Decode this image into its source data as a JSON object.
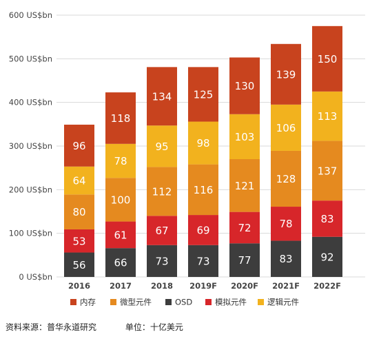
{
  "chart_data": {
    "type": "bar",
    "stacked": true,
    "categories": [
      "2016",
      "2017",
      "2018",
      "2019F",
      "2020F",
      "2021F",
      "2022F"
    ],
    "ylim": [
      0,
      600
    ],
    "yticks": [
      0,
      100,
      200,
      300,
      400,
      500,
      600
    ],
    "ytick_labels": [
      "0 US$bn",
      "100 US$bn",
      "200 US$bn",
      "300 US$bn",
      "400 US$bn",
      "500 US$bn",
      "600 US$bn"
    ],
    "grid": true,
    "legend_position": "bottom",
    "series": [
      {
        "name": "OSD",
        "values": [
          56,
          66,
          73,
          73,
          77,
          83,
          92
        ],
        "color": "#3d3d3d"
      },
      {
        "name": "模拟元件",
        "values": [
          53,
          61,
          67,
          69,
          72,
          78,
          83
        ],
        "color": "#d7262a"
      },
      {
        "name": "微型元件",
        "values": [
          80,
          100,
          112,
          116,
          121,
          128,
          137
        ],
        "color": "#e58a1f"
      },
      {
        "name": "逻辑元件",
        "values": [
          64,
          78,
          95,
          98,
          103,
          106,
          113
        ],
        "color": "#f2b21e"
      },
      {
        "name": "内存",
        "values": [
          96,
          118,
          134,
          125,
          130,
          139,
          150
        ],
        "color": "#c8431e"
      }
    ],
    "legend_order": [
      "内存",
      "微型元件",
      "OSD",
      "模拟元件",
      "逻辑元件"
    ]
  },
  "source": {
    "text": "资料来源：普华永道研究",
    "unit": "单位：十亿美元"
  }
}
